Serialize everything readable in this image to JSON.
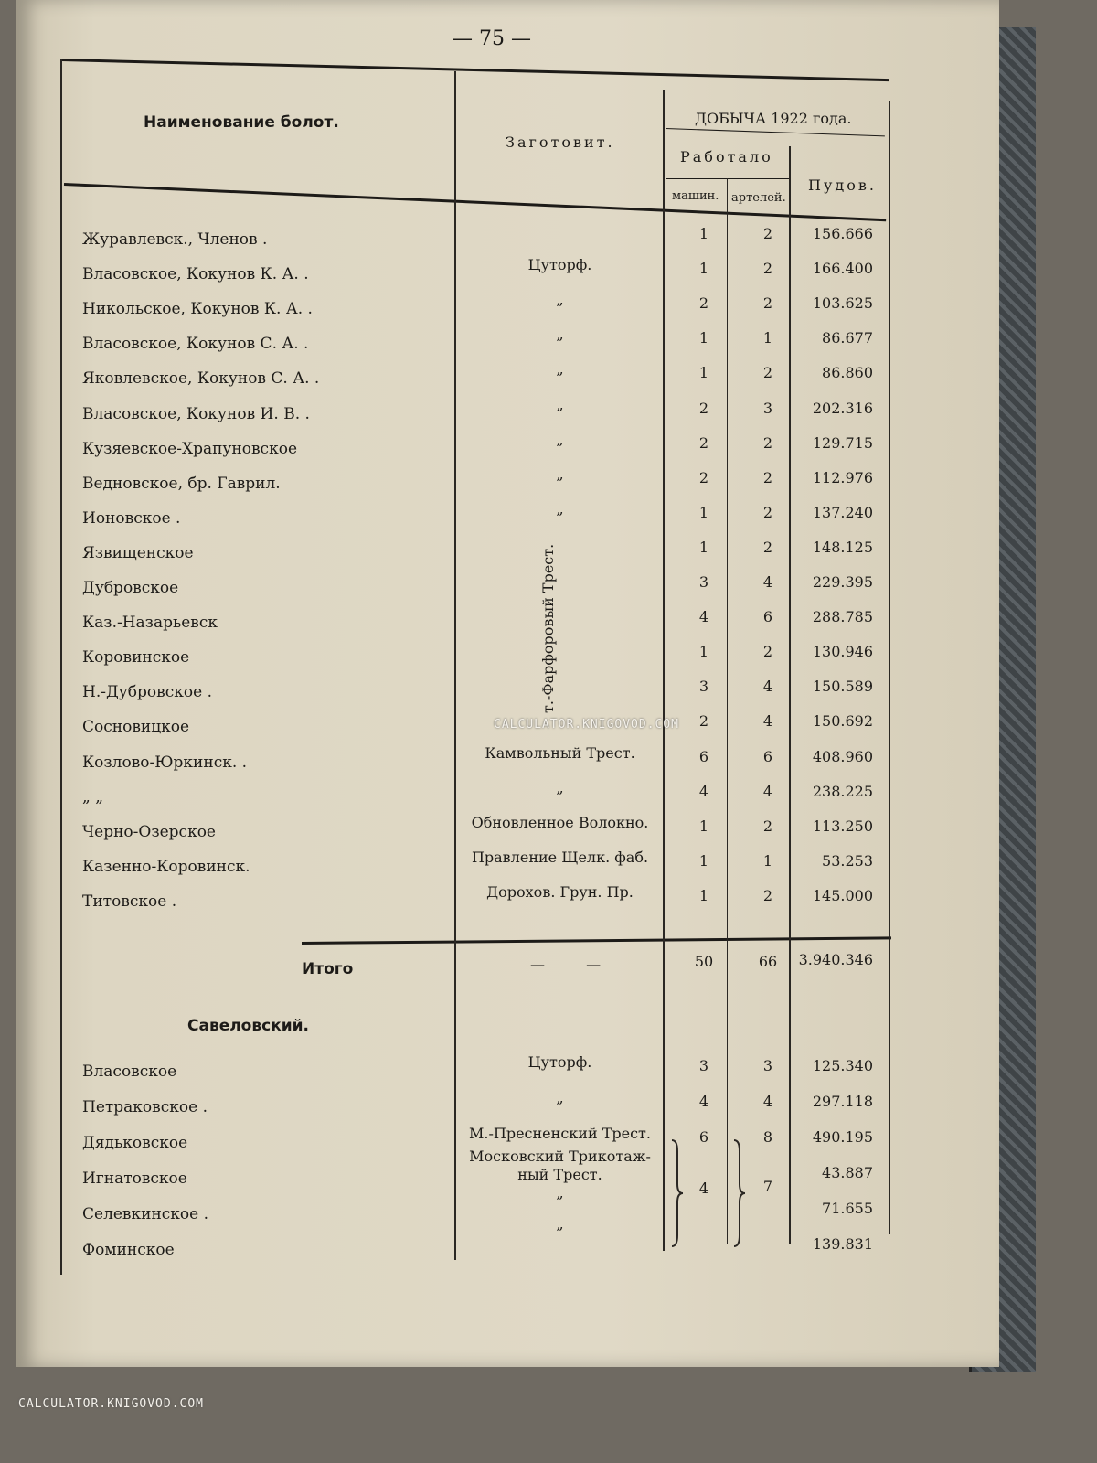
{
  "page_number": "— 75 —",
  "header": {
    "name_col": "Наименование болот.",
    "zag_col": "Заготовит.",
    "group": "ДОБЫЧА 1922 года.",
    "worked": "Работало",
    "machines": "машин.",
    "artels": "артелей.",
    "poods": "Пудов."
  },
  "rows": [
    {
      "name": "Журавлевск., Членов .",
      "zag": "",
      "m": "1",
      "a": "2",
      "p": "156.666"
    },
    {
      "name": "Власовское, Кокунов К. А. .",
      "zag": "Цуторф.",
      "m": "1",
      "a": "2",
      "p": "166.400"
    },
    {
      "name": "Никольское, Кокунов К. А. .",
      "zag": "„",
      "m": "2",
      "a": "2",
      "p": "103.625"
    },
    {
      "name": "Власовское, Кокунов С. А. .",
      "zag": "„",
      "m": "1",
      "a": "1",
      "p": "86.677"
    },
    {
      "name": "Яковлевское, Кокунов С. А. .",
      "zag": "„",
      "m": "1",
      "a": "2",
      "p": "86.860"
    },
    {
      "name": "Власовское, Кокунов И. В. .",
      "zag": "„",
      "m": "2",
      "a": "3",
      "p": "202.316"
    },
    {
      "name": "Кузяевское-Храпуновское",
      "zag": "„",
      "m": "2",
      "a": "2",
      "p": "129.715"
    },
    {
      "name": "Ведновское, бр. Гаврил.",
      "zag": "„",
      "m": "2",
      "a": "2",
      "p": "112.976"
    },
    {
      "name": "Ионовское .",
      "zag": "„",
      "m": "1",
      "a": "2",
      "p": "137.240"
    },
    {
      "name": "Язвищенское",
      "zag": "",
      "m": "1",
      "a": "2",
      "p": "148.125"
    },
    {
      "name": "Дубровское",
      "zag": "",
      "m": "3",
      "a": "4",
      "p": "229.395"
    },
    {
      "name": "Каз.-Назарьевск",
      "zag": "",
      "m": "4",
      "a": "6",
      "p": "288.785"
    },
    {
      "name": "Коровинское",
      "zag": "",
      "m": "1",
      "a": "2",
      "p": "130.946"
    },
    {
      "name": "Н.-Дубровское .",
      "zag": "",
      "m": "3",
      "a": "4",
      "p": "150.589"
    },
    {
      "name": "Сосновицкое",
      "zag": "",
      "m": "2",
      "a": "4",
      "p": "150.692"
    },
    {
      "name": "Козлово-Юркинск. .",
      "zag": "Камвольный Трест.",
      "m": "6",
      "a": "6",
      "p": "408.960"
    },
    {
      "name": "„ „",
      "zag": "„",
      "m": "4",
      "a": "4",
      "p": "238.225"
    },
    {
      "name": "Черно-Озерское",
      "zag": "Обновленное Волокно.",
      "m": "1",
      "a": "2",
      "p": "113.250"
    },
    {
      "name": "Казенно-Коровинск.",
      "zag": "Правление Щелк. фаб.",
      "m": "1",
      "a": "1",
      "p": "53.253"
    },
    {
      "name": "Титовское .",
      "zag": "Дорохов. Грун. Пр.",
      "m": "1",
      "a": "2",
      "p": "145.000"
    }
  ],
  "vertical_zag": "т.-Фарфоровый Трест.",
  "total": {
    "label": "Итого",
    "dashes": "— —",
    "m": "50",
    "a": "66",
    "p": "3.940.346"
  },
  "section2": {
    "title": "Савеловский.",
    "rows": [
      {
        "name": "Власовское",
        "zag": "Цуторф.",
        "m": "3",
        "a": "3",
        "p": "125.340"
      },
      {
        "name": "Петраковское .",
        "zag": "„",
        "m": "4",
        "a": "4",
        "p": "297.118"
      },
      {
        "name": "Дядьковское",
        "zag": "М.-Пресненский Трест.",
        "m": "6",
        "a": "8",
        "p": "490.195"
      },
      {
        "name": "Игнатовское",
        "zag": "",
        "m": "",
        "a": "",
        "p": "43.887"
      },
      {
        "name": "Селевкинское .",
        "zag": "",
        "m": "",
        "a": "",
        "p": "71.655"
      },
      {
        "name": "Фоминское",
        "zag": "",
        "m": "",
        "a": "",
        "p": "139.831"
      }
    ],
    "group_zag": [
      "Московский Трикотаж-",
      "ный Трест.",
      "„",
      "„"
    ],
    "group_m": "4",
    "group_a": "7"
  },
  "watermarks": [
    "CALCULATOR.KNIGOVOD.COM",
    "CALCULATOR.KNIGOVOD.COM"
  ]
}
